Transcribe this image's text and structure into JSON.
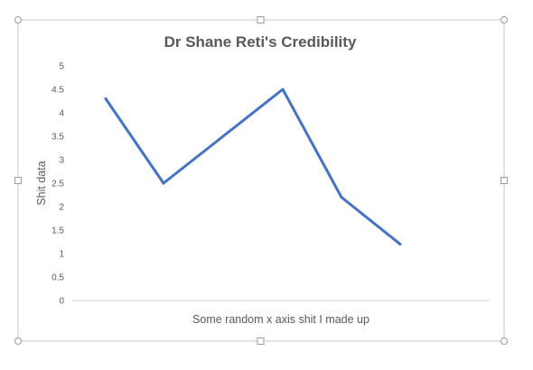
{
  "chart_data": {
    "type": "line",
    "title": "Dr Shane Reti's Credibility",
    "xlabel": "Some random x axis shit I made up",
    "ylabel": "Shit data",
    "x": [
      1,
      2,
      3,
      4,
      5,
      6
    ],
    "series": [
      {
        "values": [
          4.3,
          2.5,
          3.5,
          4.5,
          2.2,
          1.2
        ],
        "color": "#4472c4"
      }
    ],
    "yticks": [
      "0",
      "0.5",
      "1",
      "1.5",
      "2",
      "2.5",
      "3",
      "3.5",
      "4",
      "4.5",
      "5"
    ],
    "ylim": [
      0,
      5
    ],
    "grid": true,
    "gridline_color": "#4472c4",
    "legend": "none"
  }
}
